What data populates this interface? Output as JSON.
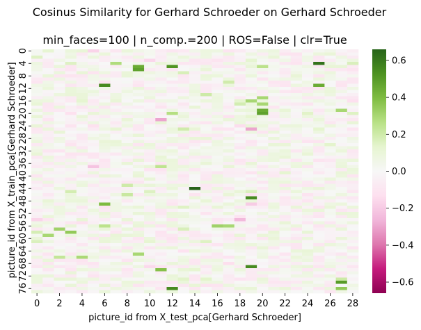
{
  "chart_data": {
    "type": "heatmap",
    "suptitle": "Cosinus Similarity for Gerhard Schroeder on Gerhard Schroeder",
    "title": "min_faces=100 | n_comp.=200 | ROS=False | clr=True",
    "xlabel": "picture_id from X_test_pca[Gerhard Schroeder]",
    "ylabel": "picture_id from X_train_pca[Gerhard Schroeder]",
    "n_cols": 29,
    "n_rows": 78,
    "x_ticks": [
      "0",
      "2",
      "4",
      "6",
      "8",
      "10",
      "12",
      "14",
      "16",
      "18",
      "20",
      "22",
      "24",
      "26",
      "28"
    ],
    "y_ticks": [
      "0",
      "4",
      "8",
      "12",
      "16",
      "20",
      "24",
      "28",
      "32",
      "36",
      "40",
      "44",
      "48",
      "52",
      "56",
      "60",
      "64",
      "68",
      "72",
      "76"
    ],
    "colorbar": {
      "min": -0.66,
      "max": 0.66,
      "ticks": [
        "0.6",
        "0.4",
        "0.2",
        "0.0",
        "−0.2",
        "−0.4",
        "−0.6"
      ],
      "tick_values": [
        0.6,
        0.4,
        0.2,
        0.0,
        -0.2,
        -0.4,
        -0.6
      ],
      "colormap": "PiYG",
      "stops": [
        "#8e0152",
        "#c51b7d",
        "#de77ae",
        "#f1b6da",
        "#fde0ef",
        "#f7f7f7",
        "#e6f5d0",
        "#b8e186",
        "#7fbc41",
        "#4d9221",
        "#276419"
      ]
    },
    "highlights": [
      {
        "row": 4,
        "col": 25,
        "value": 0.62
      },
      {
        "row": 5,
        "col": 9,
        "value": 0.45
      },
      {
        "row": 6,
        "col": 9,
        "value": 0.48
      },
      {
        "row": 5,
        "col": 12,
        "value": 0.52
      },
      {
        "row": 11,
        "col": 6,
        "value": 0.55
      },
      {
        "row": 11,
        "col": 25,
        "value": 0.45
      },
      {
        "row": 15,
        "col": 20,
        "value": 0.3
      },
      {
        "row": 16,
        "col": 19,
        "value": 0.3
      },
      {
        "row": 17,
        "col": 20,
        "value": 0.3
      },
      {
        "row": 19,
        "col": 20,
        "value": 0.45
      },
      {
        "row": 20,
        "col": 20,
        "value": 0.48
      },
      {
        "row": 19,
        "col": 27,
        "value": 0.3
      },
      {
        "row": 44,
        "col": 14,
        "value": 0.66
      },
      {
        "row": 47,
        "col": 19,
        "value": 0.55
      },
      {
        "row": 49,
        "col": 6,
        "value": 0.4
      },
      {
        "row": 56,
        "col": 16,
        "value": 0.32
      },
      {
        "row": 56,
        "col": 17,
        "value": 0.3
      },
      {
        "row": 57,
        "col": 2,
        "value": 0.32
      },
      {
        "row": 58,
        "col": 3,
        "value": 0.35
      },
      {
        "row": 59,
        "col": 1,
        "value": 0.3
      },
      {
        "row": 65,
        "col": 9,
        "value": 0.3
      },
      {
        "row": 69,
        "col": 19,
        "value": 0.55
      },
      {
        "row": 70,
        "col": 11,
        "value": 0.38
      },
      {
        "row": 74,
        "col": 27,
        "value": 0.5
      },
      {
        "row": 76,
        "col": 12,
        "value": 0.55
      },
      {
        "row": 76,
        "col": 27,
        "value": 0.35
      },
      {
        "row": 22,
        "col": 11,
        "value": -0.3
      },
      {
        "row": 25,
        "col": 19,
        "value": -0.3
      },
      {
        "row": 54,
        "col": 18,
        "value": -0.25
      },
      {
        "row": 37,
        "col": 5,
        "value": -0.22
      }
    ],
    "background_note_seed": 7
  }
}
